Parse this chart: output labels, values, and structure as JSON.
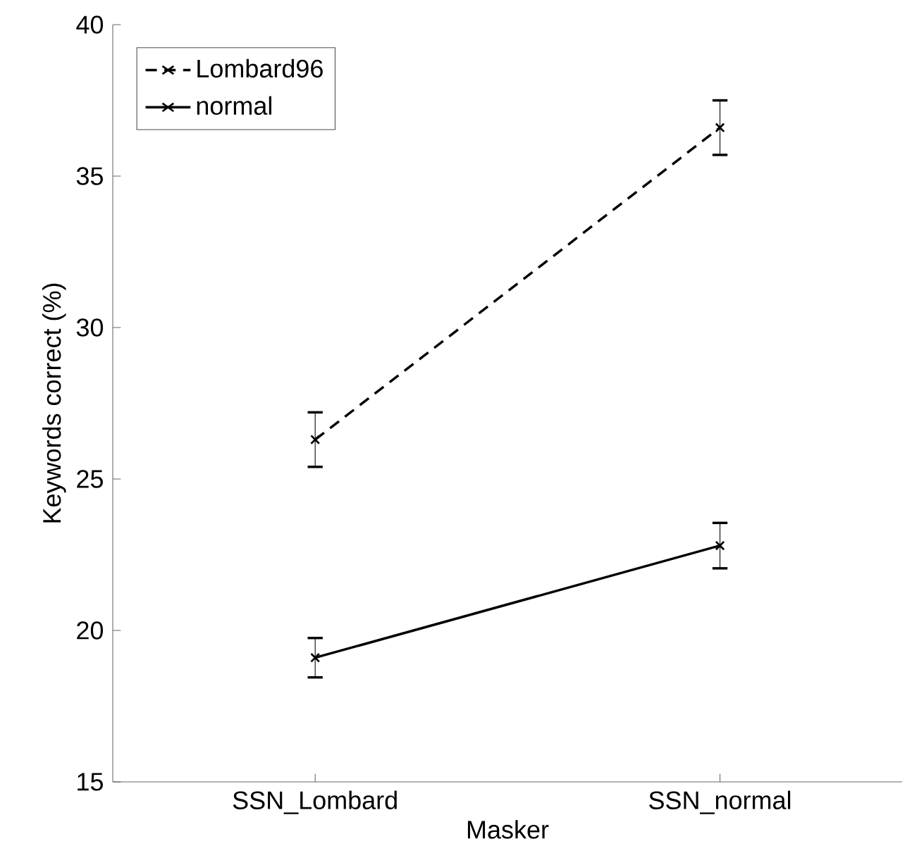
{
  "chart_data": {
    "type": "line",
    "xlabel": "Masker",
    "ylabel": "Keywords correct (%)",
    "categories": [
      "SSN_Lombard",
      "SSN_normal"
    ],
    "ylim": [
      15,
      40
    ],
    "yticks": [
      15,
      20,
      25,
      30,
      35,
      40
    ],
    "grid": false,
    "legend": "top left",
    "series": [
      {
        "name": "Lombard96",
        "color": "#000000",
        "values": [
          26.3,
          36.6
        ],
        "errors": [
          0.9,
          0.9
        ],
        "marker": "cross",
        "line_style": "dashed"
      },
      {
        "name": "normal",
        "color": "#000000",
        "values": [
          19.1,
          22.8
        ],
        "errors": [
          0.65,
          0.75
        ],
        "marker": "cross",
        "line_style": "solid"
      }
    ]
  }
}
